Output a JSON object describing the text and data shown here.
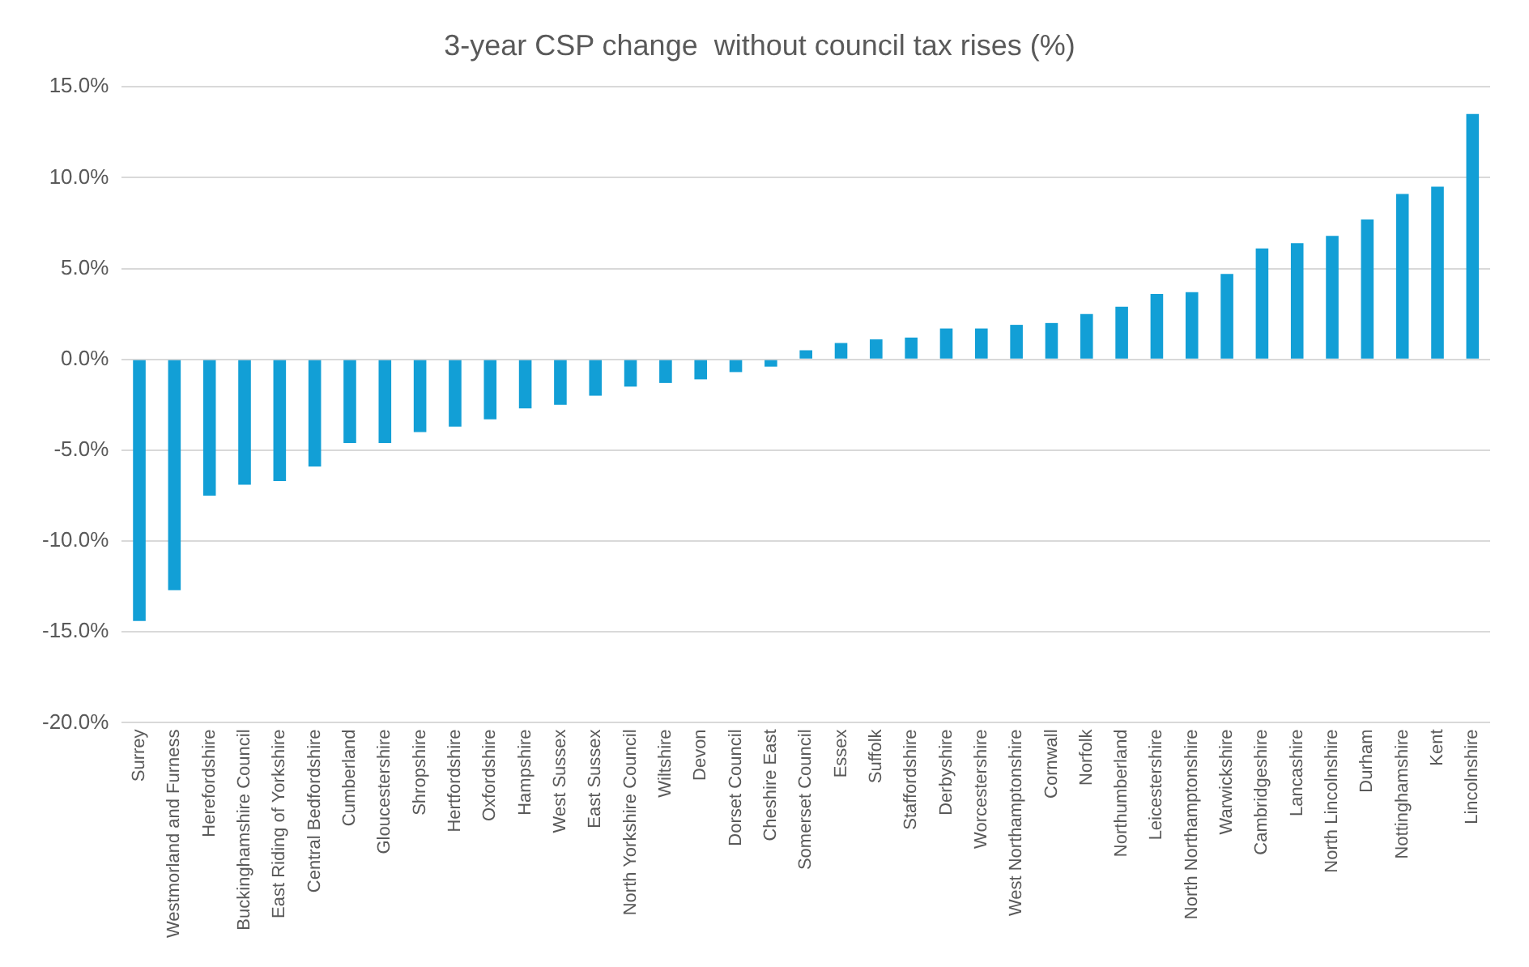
{
  "chart_data": {
    "type": "bar",
    "title": "3-year CSP change  without council tax rises (%)",
    "categories": [
      "Surrey",
      "Westmorland and Furness",
      "Herefordshire",
      "Buckinghamshire Council",
      "East Riding of Yorkshire",
      "Central Bedfordshire",
      "Cumberland",
      "Gloucestershire",
      "Shropshire",
      "Hertfordshire",
      "Oxfordshire",
      "Hampshire",
      "West Sussex",
      "East Sussex",
      "North Yorkshire Council",
      "Wiltshire",
      "Devon",
      "Dorset Council",
      "Cheshire East",
      "Somerset Council",
      "Essex",
      "Suffolk",
      "Staffordshire",
      "Derbyshire",
      "Worcestershire",
      "West Northamptonshire",
      "Cornwall",
      "Norfolk",
      "Northumberland",
      "Leicestershire",
      "North Northamptonshire",
      "Warwickshire",
      "Cambridgeshire",
      "Lancashire",
      "North Lincolnshire",
      "Durham",
      "Nottinghamshire",
      "Kent",
      "Lincolnshire"
    ],
    "values": [
      -14.4,
      -12.7,
      -7.5,
      -6.9,
      -6.7,
      -5.9,
      -4.6,
      -4.6,
      -4.0,
      -3.7,
      -3.3,
      -2.7,
      -2.5,
      -2.0,
      -1.5,
      -1.3,
      -1.1,
      -0.7,
      -0.4,
      0.5,
      0.9,
      1.1,
      1.2,
      1.7,
      1.7,
      1.9,
      2.0,
      2.5,
      2.9,
      3.6,
      3.7,
      4.7,
      6.1,
      6.4,
      6.8,
      7.7,
      9.1,
      9.5,
      13.5
    ],
    "color": "#129fd6",
    "ylim": [
      -20,
      15
    ],
    "yticks": [
      {
        "value": -20,
        "label": "-20.0%"
      },
      {
        "value": -15,
        "label": "-15.0%"
      },
      {
        "value": -10,
        "label": "-10.0%"
      },
      {
        "value": -5,
        "label": "-5.0%"
      },
      {
        "value": 0,
        "label": "0.0%"
      },
      {
        "value": 5,
        "label": "5.0%"
      },
      {
        "value": 10,
        "label": "10.0%"
      },
      {
        "value": 15,
        "label": "15.0%"
      }
    ],
    "grid": "y",
    "legend": false
  }
}
